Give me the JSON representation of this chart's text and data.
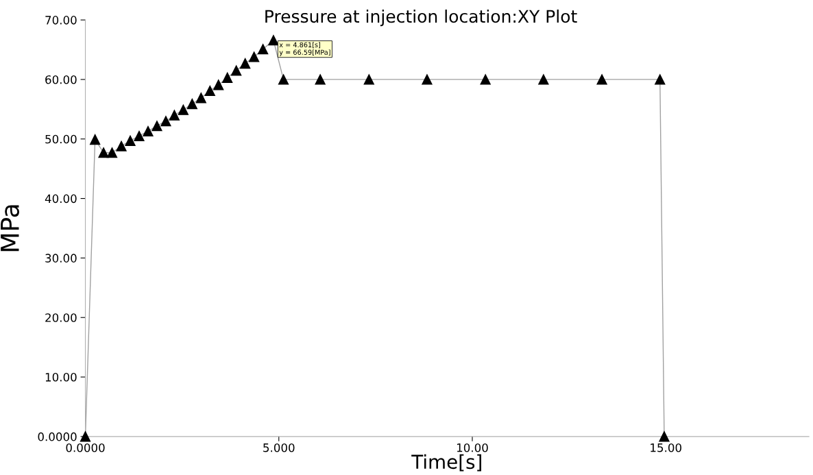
{
  "chart_data": {
    "type": "line",
    "title": "Pressure at injection location:XY Plot",
    "xlabel": "Time[s]",
    "ylabel": "MPa",
    "x": [
      0,
      0.25,
      0.47,
      0.69,
      0.93,
      1.16,
      1.39,
      1.62,
      1.85,
      2.08,
      2.3,
      2.53,
      2.76,
      2.99,
      3.22,
      3.44,
      3.67,
      3.9,
      4.13,
      4.36,
      4.59,
      4.861,
      5.12,
      6.07,
      7.33,
      8.83,
      10.34,
      11.84,
      13.35,
      14.85,
      14.96
    ],
    "series": [
      {
        "color": "#000000",
        "values": [
          0,
          49.9,
          47.7,
          47.7,
          48.8,
          49.7,
          50.5,
          51.3,
          52.2,
          53.0,
          54.0,
          54.9,
          55.9,
          56.9,
          58.1,
          59.1,
          60.3,
          61.5,
          62.7,
          63.8,
          65.1,
          66.59,
          60,
          60,
          60,
          60,
          60,
          60,
          60,
          60,
          0
        ]
      }
    ],
    "marker": "triangle",
    "line_style": "solid",
    "grid": false,
    "legend": false,
    "xlim": [
      0,
      18.7
    ],
    "ylim": [
      0,
      70
    ],
    "xticks": [
      {
        "value": 0,
        "label": "0.0000"
      },
      {
        "value": 5,
        "label": "5.000"
      },
      {
        "value": 10,
        "label": "10.00"
      },
      {
        "value": 15,
        "label": "15.00"
      }
    ],
    "yticks": [
      {
        "value": 0,
        "label": "0.0000"
      },
      {
        "value": 10,
        "label": "10.00"
      },
      {
        "value": 20,
        "label": "20.00"
      },
      {
        "value": 30,
        "label": "30.00"
      },
      {
        "value": 40,
        "label": "40.00"
      },
      {
        "value": 50,
        "label": "50.00"
      },
      {
        "value": 60,
        "label": "60.00"
      },
      {
        "value": 70,
        "label": "70.00"
      }
    ],
    "annotations": [
      {
        "text": "x = 4.861[s]\ny = 66.59[MPa]",
        "x": 4.861,
        "y": 66.59
      }
    ]
  }
}
